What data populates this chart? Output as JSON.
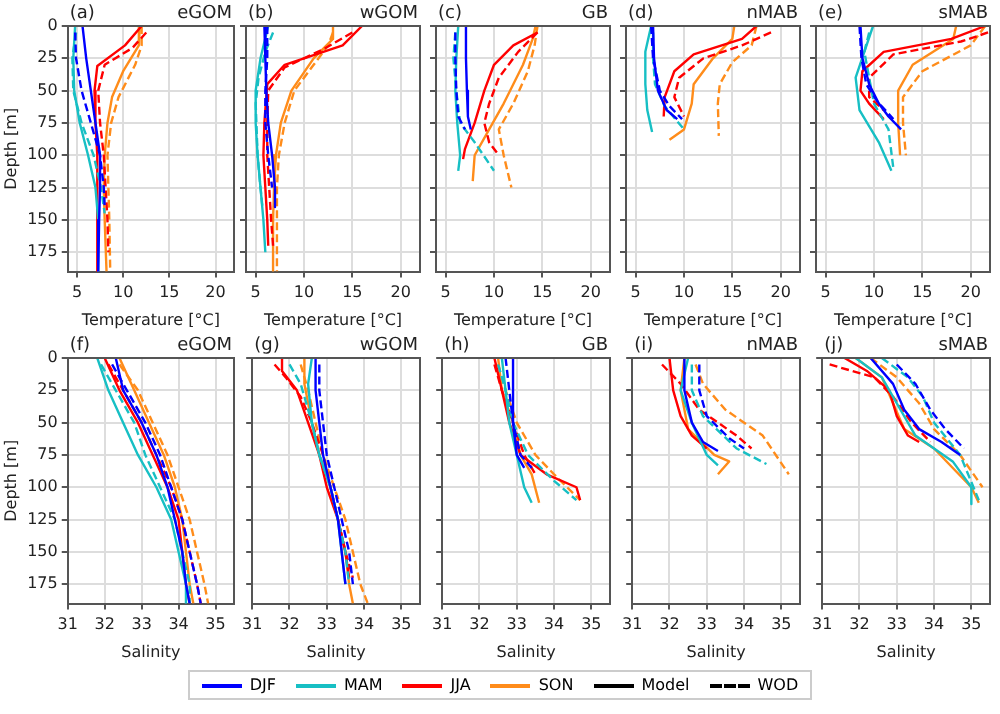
{
  "chart_data": [
    {
      "type": "line",
      "title": "(a)",
      "subtitle": "eGOM",
      "xlabel": "Temperature [°C]",
      "ylabel": "Depth [m]",
      "xlim": [
        4,
        22
      ],
      "xticks": [
        5,
        10,
        15,
        20
      ],
      "ylim": [
        190,
        0
      ],
      "yticks": [
        0,
        25,
        50,
        75,
        100,
        125,
        150,
        175
      ],
      "grid": true,
      "legend": "bottom",
      "series": [
        {
          "name": "DJF",
          "color": "#0000ff",
          "line_style": "solid",
          "x": [
            5.6,
            6,
            6.5,
            7,
            7.5,
            7.5,
            7.4,
            7.3
          ],
          "values": [
            0,
            25,
            50,
            75,
            100,
            125,
            150,
            190
          ]
        },
        {
          "color": "#0000ff",
          "line_style": "dashed",
          "x": [
            4.8,
            4.9,
            5.5,
            6.5,
            7.5,
            7.9,
            8
          ],
          "values": [
            5,
            25,
            50,
            75,
            100,
            125,
            140
          ]
        },
        {
          "name": "MAM",
          "color": "#17bfc4",
          "line_style": "solid",
          "x": [
            4.8,
            4.6,
            4.7,
            5.3,
            6.2,
            7,
            7.3,
            7.3
          ],
          "values": [
            0,
            25,
            50,
            75,
            100,
            125,
            150,
            190
          ]
        },
        {
          "color": "#17bfc4",
          "line_style": "dashed",
          "x": [
            4.9,
            4.5,
            4.6,
            5.5,
            6.8,
            7.6,
            8
          ],
          "values": [
            5,
            25,
            50,
            75,
            100,
            125,
            145
          ]
        },
        {
          "name": "JJA",
          "color": "#ff0000",
          "line_style": "solid",
          "x": [
            12,
            10.2,
            7.2,
            6.9,
            7,
            7.2,
            7.2,
            7.2,
            7.2
          ],
          "values": [
            0,
            15,
            31,
            50,
            75,
            100,
            125,
            150,
            190
          ]
        },
        {
          "color": "#ff0000",
          "line_style": "dashed",
          "x": [
            12.5,
            11,
            8,
            7.3,
            7.5,
            7.9,
            8.1,
            8.3,
            8.4
          ],
          "values": [
            5,
            17,
            30,
            50,
            75,
            100,
            125,
            150,
            175
          ]
        },
        {
          "name": "SON",
          "color": "#ff8c1a",
          "line_style": "solid",
          "x": [
            11.8,
            11.7,
            10,
            8.8,
            8.3,
            8,
            7.9,
            8,
            8.2
          ],
          "values": [
            0,
            15,
            35,
            55,
            75,
            100,
            125,
            150,
            190
          ]
        },
        {
          "color": "#ff8c1a",
          "line_style": "dashed",
          "x": [
            12,
            12,
            11.3,
            9.5,
            8.7,
            8.3,
            8.4,
            8.5,
            8.6
          ],
          "values": [
            0,
            15,
            30,
            55,
            75,
            100,
            125,
            150,
            190
          ]
        },
        {
          "name": "Model",
          "color": "#000000",
          "line_style": "solid"
        },
        {
          "name": "WOD",
          "color": "#000000",
          "line_style": "dashed"
        }
      ]
    },
    {
      "type": "line",
      "title": "(b)",
      "subtitle": "wGOM",
      "xlabel": "Temperature [°C]",
      "xlim": [
        4,
        22
      ],
      "xticks": [
        5,
        10,
        15,
        20
      ],
      "ylim": [
        190,
        0
      ],
      "yticks": [
        0,
        25,
        50,
        75,
        100,
        125,
        150,
        175
      ],
      "grid": true,
      "tick_labels": "x",
      "series": [
        {
          "color": "#0000ff",
          "line_style": "solid",
          "x": [
            5.9,
            6,
            6.1,
            6.3,
            6.7,
            7,
            7
          ],
          "values": [
            0,
            25,
            50,
            75,
            100,
            125,
            140
          ]
        },
        {
          "color": "#0000ff",
          "line_style": "dashed",
          "x": [
            6.2,
            6.2,
            6,
            6,
            6.3,
            6.7
          ],
          "values": [
            0,
            25,
            50,
            75,
            100,
            125
          ]
        },
        {
          "color": "#17bfc4",
          "line_style": "solid",
          "x": [
            6.3,
            5.5,
            5,
            5,
            5.2,
            5.5,
            5.8,
            6
          ],
          "values": [
            0,
            25,
            50,
            75,
            100,
            125,
            150,
            175
          ]
        },
        {
          "color": "#17bfc4",
          "line_style": "dashed",
          "x": [
            6.8,
            6,
            5.3,
            5,
            5.2,
            5.5,
            5.7
          ],
          "values": [
            5,
            20,
            40,
            60,
            100,
            125,
            140
          ]
        },
        {
          "color": "#ff0000",
          "line_style": "solid",
          "x": [
            16,
            14,
            8,
            6.2,
            5.9,
            5.8,
            6,
            6.2,
            6.3
          ],
          "values": [
            0,
            15,
            30,
            45,
            75,
            100,
            125,
            150,
            170
          ]
        },
        {
          "color": "#ff0000",
          "line_style": "dashed",
          "x": [
            15,
            12,
            8,
            6.3,
            6.2,
            6.2,
            6.4,
            6.6,
            6.8
          ],
          "values": [
            5,
            18,
            32,
            50,
            75,
            100,
            125,
            150,
            170
          ]
        },
        {
          "color": "#ff8c1a",
          "line_style": "solid",
          "x": [
            13,
            13,
            11,
            8.7,
            7.6,
            7.1,
            6.9,
            6.8,
            6.8
          ],
          "values": [
            0,
            10,
            25,
            50,
            75,
            100,
            125,
            150,
            190
          ]
        },
        {
          "color": "#ff8c1a",
          "line_style": "dashed",
          "x": [
            13,
            12.5,
            11,
            9,
            8,
            7.4,
            7.2,
            7.2,
            7.2
          ],
          "values": [
            5,
            15,
            30,
            50,
            75,
            100,
            125,
            150,
            190
          ]
        }
      ]
    },
    {
      "type": "line",
      "title": "(c)",
      "subtitle": "GB",
      "xlabel": "Temperature [°C]",
      "xlim": [
        4,
        22
      ],
      "xticks": [
        5,
        10,
        15,
        20
      ],
      "ylim": [
        190,
        0
      ],
      "yticks": [
        0,
        25,
        50,
        75,
        100,
        125,
        150,
        175
      ],
      "grid": true,
      "tick_labels": "x",
      "series": [
        {
          "color": "#0000ff",
          "line_style": "solid",
          "x": [
            7.1,
            7.1,
            7.2,
            7.3,
            7.6
          ],
          "values": [
            0,
            25,
            50,
            70,
            80
          ]
        },
        {
          "color": "#0000ff",
          "line_style": "dashed",
          "x": [
            6,
            6,
            6.1,
            6.3,
            7
          ],
          "values": [
            5,
            25,
            50,
            70,
            80
          ]
        },
        {
          "color": "#17bfc4",
          "line_style": "solid",
          "x": [
            6.3,
            6.1,
            6,
            6.2,
            6.5,
            6.3
          ],
          "values": [
            0,
            25,
            50,
            75,
            100,
            112
          ]
        },
        {
          "color": "#17bfc4",
          "line_style": "dashed",
          "x": [
            6,
            5.8,
            6.1,
            6.5,
            8,
            10
          ],
          "values": [
            5,
            25,
            50,
            75,
            90,
            112
          ]
        },
        {
          "color": "#ff0000",
          "line_style": "solid",
          "x": [
            14.5,
            12,
            10,
            9,
            8,
            7,
            6.8
          ],
          "values": [
            5,
            15,
            30,
            50,
            75,
            95,
            103
          ]
        },
        {
          "color": "#ff0000",
          "line_style": "dashed",
          "x": [
            14.5,
            12.5,
            10.5,
            9.5,
            9,
            9.5,
            10.5
          ],
          "values": [
            5,
            20,
            40,
            60,
            75,
            90,
            100
          ]
        },
        {
          "color": "#ff8c1a",
          "line_style": "solid",
          "x": [
            14.3,
            14,
            13,
            11,
            9.5,
            8,
            7.8
          ],
          "values": [
            0,
            10,
            30,
            60,
            80,
            100,
            120
          ]
        },
        {
          "color": "#ff8c1a",
          "line_style": "dashed",
          "x": [
            14.5,
            14.2,
            13.5,
            12,
            10.5,
            11,
            11.8
          ],
          "values": [
            0,
            15,
            35,
            60,
            80,
            100,
            125
          ]
        }
      ]
    },
    {
      "type": "line",
      "title": "(d)",
      "subtitle": "nMAB",
      "xlabel": "Temperature [°C]",
      "xlim": [
        4,
        22
      ],
      "xticks": [
        5,
        10,
        15,
        20
      ],
      "ylim": [
        190,
        0
      ],
      "yticks": [
        0,
        25,
        50,
        75,
        100,
        125,
        150,
        175
      ],
      "grid": true,
      "tick_labels": "x",
      "series": [
        {
          "color": "#0000ff",
          "line_style": "solid",
          "x": [
            6.8,
            6.9,
            7.3,
            8.2,
            9.3
          ],
          "values": [
            0,
            25,
            50,
            65,
            72
          ]
        },
        {
          "color": "#0000ff",
          "line_style": "dashed",
          "x": [
            6.6,
            6.8,
            7.5,
            8.5,
            9.8
          ],
          "values": [
            0,
            25,
            50,
            62,
            72
          ]
        },
        {
          "color": "#17bfc4",
          "line_style": "solid",
          "x": [
            6.6,
            6,
            6,
            6.2,
            6.7
          ],
          "values": [
            0,
            20,
            45,
            65,
            82
          ]
        },
        {
          "color": "#17bfc4",
          "line_style": "dashed",
          "x": [
            6.8,
            6.8,
            7,
            8,
            10
          ],
          "values": [
            5,
            25,
            45,
            62,
            80
          ]
        },
        {
          "color": "#ff0000",
          "line_style": "solid",
          "x": [
            17.5,
            16,
            11,
            9,
            8,
            7.9
          ],
          "values": [
            0,
            10,
            22,
            35,
            55,
            70
          ]
        },
        {
          "color": "#ff0000",
          "line_style": "dashed",
          "x": [
            19,
            16,
            12,
            9.5,
            9,
            10
          ],
          "values": [
            5,
            15,
            25,
            40,
            55,
            70
          ]
        },
        {
          "color": "#ff8c1a",
          "line_style": "solid",
          "x": [
            15.2,
            15,
            13,
            11,
            10.8,
            10,
            8.5
          ],
          "values": [
            0,
            10,
            25,
            45,
            60,
            80,
            88
          ]
        },
        {
          "color": "#ff8c1a",
          "line_style": "dashed",
          "x": [
            17.5,
            17,
            15,
            13.7,
            13.5,
            13.6
          ],
          "values": [
            0,
            15,
            28,
            45,
            60,
            85
          ]
        }
      ]
    },
    {
      "type": "line",
      "title": "(e)",
      "subtitle": "sMAB",
      "xlabel": "Temperature [°C]",
      "xlim": [
        4,
        22
      ],
      "xticks": [
        5,
        10,
        15,
        20
      ],
      "ylim": [
        190,
        0
      ],
      "yticks": [
        0,
        25,
        50,
        75,
        100,
        125,
        150,
        175
      ],
      "grid": true,
      "tick_labels": "x",
      "series": [
        {
          "color": "#0000ff",
          "line_style": "solid",
          "x": [
            8.6,
            8.8,
            9.5,
            10.5,
            11.5,
            12.8
          ],
          "values": [
            0,
            25,
            45,
            60,
            70,
            80
          ]
        },
        {
          "color": "#0000ff",
          "line_style": "dashed",
          "x": [
            8.5,
            8.7,
            9.2,
            10.3,
            12
          ],
          "values": [
            0,
            25,
            45,
            58,
            72
          ]
        },
        {
          "color": "#17bfc4",
          "line_style": "solid",
          "x": [
            9.9,
            9,
            8.1,
            8.5,
            10.5,
            11.8
          ],
          "values": [
            0,
            20,
            40,
            65,
            90,
            112
          ]
        },
        {
          "color": "#17bfc4",
          "line_style": "dashed",
          "x": [
            9.5,
            9,
            9.5,
            10,
            11.5,
            12
          ],
          "values": [
            5,
            20,
            40,
            60,
            80,
            110
          ]
        },
        {
          "color": "#ff0000",
          "line_style": "solid",
          "x": [
            21.5,
            18,
            11,
            8.8,
            8.6,
            9.5,
            11
          ],
          "values": [
            0,
            10,
            20,
            35,
            50,
            60,
            72
          ]
        },
        {
          "color": "#ff0000",
          "line_style": "dashed",
          "x": [
            21.8,
            19,
            12,
            9.5,
            9.5,
            11
          ],
          "values": [
            5,
            12,
            22,
            40,
            55,
            65
          ]
        },
        {
          "color": "#ff8c1a",
          "line_style": "solid",
          "x": [
            18.5,
            18.2,
            14,
            12.5,
            12.5,
            12.7
          ],
          "values": [
            0,
            10,
            30,
            50,
            75,
            100
          ]
        },
        {
          "color": "#ff8c1a",
          "line_style": "dashed",
          "x": [
            21.5,
            20,
            15,
            13,
            13,
            13.3
          ],
          "values": [
            0,
            15,
            35,
            55,
            75,
            100
          ]
        }
      ]
    },
    {
      "type": "line",
      "title": "(f)",
      "subtitle": "eGOM",
      "xlabel": "Salinity",
      "ylabel": "Depth [m]",
      "xlim": [
        31,
        35.5
      ],
      "xticks": [
        31,
        32,
        33,
        34,
        35
      ],
      "ylim": [
        190,
        0
      ],
      "yticks": [
        0,
        25,
        50,
        75,
        100,
        125,
        150,
        175
      ],
      "grid": true,
      "series": [
        {
          "color": "#0000ff",
          "line_style": "solid",
          "x": [
            32.3,
            32.5,
            33,
            33.4,
            33.7,
            33.9,
            34.1,
            34.2,
            34.3
          ],
          "values": [
            0,
            25,
            50,
            75,
            100,
            125,
            150,
            175,
            190
          ]
        },
        {
          "color": "#0000ff",
          "line_style": "dashed",
          "x": [
            32.2,
            32.6,
            33.1,
            33.5,
            33.8,
            34.1,
            34.3,
            34.5,
            34.6
          ],
          "values": [
            5,
            25,
            50,
            75,
            100,
            125,
            150,
            175,
            190
          ]
        },
        {
          "color": "#17bfc4",
          "line_style": "solid",
          "x": [
            31.8,
            32.1,
            32.5,
            32.9,
            33.4,
            33.8,
            34,
            34.2,
            34.2
          ],
          "values": [
            0,
            25,
            50,
            75,
            100,
            125,
            150,
            175,
            190
          ]
        },
        {
          "color": "#17bfc4",
          "line_style": "dashed",
          "x": [
            31.9,
            32.3,
            32.8,
            33.1,
            33.5,
            33.9,
            34.1,
            34.3,
            34.3
          ],
          "values": [
            5,
            25,
            50,
            75,
            100,
            125,
            150,
            175,
            190
          ]
        },
        {
          "color": "#ff0000",
          "line_style": "solid",
          "x": [
            32,
            32.4,
            32.9,
            33.3,
            33.7,
            34,
            34.1,
            34.2,
            34.3
          ],
          "values": [
            0,
            25,
            50,
            75,
            100,
            125,
            150,
            175,
            190
          ]
        },
        {
          "color": "#ff0000",
          "line_style": "dashed",
          "x": [
            32.1,
            32.5,
            33,
            33.4,
            33.8,
            34.1,
            34.3,
            34.5,
            34.6
          ],
          "values": [
            5,
            25,
            50,
            75,
            100,
            125,
            150,
            175,
            190
          ]
        },
        {
          "color": "#ff8c1a",
          "line_style": "solid",
          "x": [
            32.4,
            32.8,
            33.2,
            33.6,
            33.9,
            34.1,
            34.2,
            34.3,
            34.4
          ],
          "values": [
            0,
            25,
            50,
            75,
            100,
            125,
            150,
            175,
            190
          ]
        },
        {
          "color": "#ff8c1a",
          "line_style": "dashed",
          "x": [
            32.4,
            32.9,
            33.3,
            33.7,
            34,
            34.3,
            34.5,
            34.7,
            34.8
          ],
          "values": [
            5,
            25,
            50,
            75,
            100,
            125,
            150,
            175,
            190
          ]
        }
      ]
    },
    {
      "type": "line",
      "title": "(g)",
      "subtitle": "wGOM",
      "xlabel": "Salinity",
      "xlim": [
        31,
        35.5
      ],
      "xticks": [
        31,
        32,
        33,
        34,
        35
      ],
      "ylim": [
        190,
        0
      ],
      "yticks": [
        0,
        25,
        50,
        75,
        100,
        125,
        150,
        175
      ],
      "grid": true,
      "tick_labels": "x",
      "series": [
        {
          "color": "#0000ff",
          "line_style": "solid",
          "x": [
            32.7,
            32.7,
            32.8,
            32.9,
            33.1,
            33.3,
            33.4,
            33.5
          ],
          "values": [
            0,
            25,
            50,
            75,
            100,
            125,
            150,
            175
          ]
        },
        {
          "color": "#0000ff",
          "line_style": "dashed",
          "x": [
            32.8,
            32.8,
            32.9,
            33,
            33.2,
            33.4,
            33.6,
            33.7
          ],
          "values": [
            5,
            25,
            50,
            75,
            100,
            125,
            150,
            175
          ]
        },
        {
          "color": "#17bfc4",
          "line_style": "solid",
          "x": [
            32.6,
            32.5,
            32.6,
            32.8,
            33.1,
            33.3,
            33.4,
            33.5
          ],
          "values": [
            0,
            20,
            50,
            75,
            100,
            125,
            150,
            175
          ]
        },
        {
          "color": "#17bfc4",
          "line_style": "dashed",
          "x": [
            32,
            32.3,
            32.6,
            32.8,
            33.1,
            33.3,
            33.5,
            33.6
          ],
          "values": [
            5,
            20,
            50,
            75,
            100,
            125,
            150,
            175
          ]
        },
        {
          "color": "#ff0000",
          "line_style": "solid",
          "x": [
            31.8,
            31.8,
            32.2,
            32.5,
            32.8,
            33,
            33.3,
            33.5,
            33.6
          ],
          "values": [
            0,
            10,
            25,
            50,
            75,
            100,
            125,
            150,
            170
          ]
        },
        {
          "color": "#ff0000",
          "line_style": "dashed",
          "x": [
            31.6,
            31.9,
            32.3,
            32.6,
            32.9,
            33.1,
            33.3,
            33.5,
            33.7
          ],
          "values": [
            5,
            15,
            30,
            50,
            75,
            100,
            125,
            150,
            170
          ]
        },
        {
          "color": "#ff8c1a",
          "line_style": "solid",
          "x": [
            32.4,
            32.4,
            32.6,
            32.8,
            33.1,
            33.3,
            33.5,
            33.6,
            33.7
          ],
          "values": [
            0,
            20,
            50,
            75,
            100,
            125,
            150,
            175,
            190
          ]
        },
        {
          "color": "#ff8c1a",
          "line_style": "dashed",
          "x": [
            32.3,
            32.5,
            32.7,
            32.9,
            33.2,
            33.5,
            33.7,
            33.9,
            34.1
          ],
          "values": [
            5,
            25,
            50,
            75,
            100,
            125,
            150,
            175,
            190
          ]
        }
      ]
    },
    {
      "type": "line",
      "title": "(h)",
      "subtitle": "GB",
      "xlabel": "Salinity",
      "xlim": [
        31,
        35.5
      ],
      "xticks": [
        31,
        32,
        33,
        34,
        35
      ],
      "ylim": [
        190,
        0
      ],
      "yticks": [
        0,
        25,
        50,
        75,
        100,
        125,
        150,
        175
      ],
      "grid": true,
      "tick_labels": "x",
      "series": [
        {
          "color": "#0000ff",
          "line_style": "solid",
          "x": [
            32.9,
            32.9,
            32.9,
            33,
            33.2
          ],
          "values": [
            0,
            25,
            50,
            75,
            85
          ]
        },
        {
          "color": "#0000ff",
          "line_style": "dashed",
          "x": [
            32.7,
            32.8,
            32.9,
            33.1,
            33.4
          ],
          "values": [
            0,
            25,
            50,
            75,
            85
          ]
        },
        {
          "color": "#17bfc4",
          "line_style": "solid",
          "x": [
            32.6,
            32.7,
            32.8,
            33,
            33.2,
            33.4
          ],
          "values": [
            0,
            25,
            50,
            75,
            100,
            112
          ]
        },
        {
          "color": "#17bfc4",
          "line_style": "dashed",
          "x": [
            32.5,
            32.7,
            32.9,
            33.3,
            34,
            34.6
          ],
          "values": [
            5,
            25,
            50,
            75,
            95,
            110
          ]
        },
        {
          "color": "#ff0000",
          "line_style": "solid",
          "x": [
            32.4,
            32.6,
            32.8,
            33.1,
            33.8,
            34.6,
            34.7
          ],
          "values": [
            0,
            25,
            50,
            75,
            90,
            100,
            110
          ]
        },
        {
          "color": "#ff0000",
          "line_style": "dashed",
          "x": [
            32.4,
            32.6,
            32.9,
            33.2,
            33.5
          ],
          "values": [
            5,
            25,
            50,
            75,
            90
          ]
        },
        {
          "color": "#ff8c1a",
          "line_style": "solid",
          "x": [
            32.5,
            32.6,
            32.9,
            33.1,
            33.4,
            33.6
          ],
          "values": [
            0,
            25,
            50,
            75,
            90,
            112
          ]
        },
        {
          "color": "#ff8c1a",
          "line_style": "dashed",
          "x": [
            32.5,
            32.7,
            33,
            33.5,
            34,
            34.7
          ],
          "values": [
            5,
            25,
            50,
            75,
            90,
            110
          ]
        }
      ]
    },
    {
      "type": "line",
      "title": "(i)",
      "subtitle": "nMAB",
      "xlabel": "Salinity",
      "xlim": [
        31,
        35.5
      ],
      "xticks": [
        31,
        32,
        33,
        34,
        35
      ],
      "ylim": [
        190,
        0
      ],
      "yticks": [
        0,
        25,
        50,
        75,
        100,
        125,
        150,
        175
      ],
      "grid": true,
      "tick_labels": "x",
      "series": [
        {
          "color": "#0000ff",
          "line_style": "solid",
          "x": [
            32.4,
            32.4,
            32.6,
            32.9,
            33.3
          ],
          "values": [
            0,
            25,
            50,
            65,
            72
          ]
        },
        {
          "color": "#0000ff",
          "line_style": "dashed",
          "x": [
            32.8,
            32.8,
            33,
            33.6,
            34
          ],
          "values": [
            5,
            25,
            45,
            62,
            70
          ]
        },
        {
          "color": "#17bfc4",
          "line_style": "solid",
          "x": [
            32.5,
            32.3,
            32.6,
            33,
            33.3
          ],
          "values": [
            0,
            25,
            50,
            75,
            83
          ]
        },
        {
          "color": "#17bfc4",
          "line_style": "dashed",
          "x": [
            32.6,
            32.6,
            32.9,
            33.8,
            34.6
          ],
          "values": [
            5,
            25,
            45,
            70,
            82
          ]
        },
        {
          "color": "#ff0000",
          "line_style": "solid",
          "x": [
            32,
            32.1,
            32.3,
            32.6,
            33
          ],
          "values": [
            0,
            25,
            45,
            60,
            70
          ]
        },
        {
          "color": "#ff0000",
          "line_style": "dashed",
          "x": [
            31.8,
            32.3,
            32.8,
            33.8,
            34.2
          ],
          "values": [
            5,
            20,
            40,
            60,
            70
          ]
        },
        {
          "color": "#ff8c1a",
          "line_style": "solid",
          "x": [
            32.4,
            32.3,
            32.5,
            33.2,
            33.6,
            33.3
          ],
          "values": [
            0,
            25,
            55,
            75,
            80,
            90
          ]
        },
        {
          "color": "#ff8c1a",
          "line_style": "dashed",
          "x": [
            32.7,
            32.9,
            33.5,
            34.5,
            35.2
          ],
          "values": [
            5,
            20,
            40,
            60,
            90
          ]
        }
      ]
    },
    {
      "type": "line",
      "title": "(j)",
      "subtitle": "sMAB",
      "xlabel": "Salinity",
      "xlim": [
        31,
        35.5
      ],
      "xticks": [
        31,
        32,
        33,
        34,
        35
      ],
      "ylim": [
        190,
        0
      ],
      "yticks": [
        0,
        25,
        50,
        75,
        100,
        125,
        150,
        175
      ],
      "grid": true,
      "tick_labels": "x",
      "series": [
        {
          "color": "#0000ff",
          "line_style": "solid",
          "x": [
            32.3,
            32.9,
            33.2,
            33.6,
            34.2,
            34.7
          ],
          "values": [
            0,
            20,
            40,
            55,
            65,
            75
          ]
        },
        {
          "color": "#0000ff",
          "line_style": "dashed",
          "x": [
            33,
            33.5,
            33.9,
            34.3,
            34.8
          ],
          "values": [
            5,
            20,
            40,
            55,
            70
          ]
        },
        {
          "color": "#17bfc4",
          "line_style": "solid",
          "x": [
            31.9,
            32.6,
            33,
            33.5,
            34.5,
            35,
            35
          ],
          "values": [
            0,
            15,
            35,
            60,
            80,
            100,
            113
          ]
        },
        {
          "color": "#17bfc4",
          "line_style": "dashed",
          "x": [
            32.6,
            33.3,
            33.7,
            34,
            34.7,
            35.2
          ],
          "values": [
            0,
            15,
            30,
            50,
            75,
            110
          ]
        },
        {
          "color": "#ff0000",
          "line_style": "solid",
          "x": [
            31.6,
            32.2,
            32.8,
            33,
            33.3,
            33.6
          ],
          "values": [
            0,
            10,
            25,
            45,
            60,
            65
          ]
        },
        {
          "color": "#ff0000",
          "line_style": "dashed",
          "x": [
            31.2,
            32.4,
            32.9,
            33.4,
            33.9
          ],
          "values": [
            5,
            15,
            30,
            50,
            65
          ]
        },
        {
          "color": "#ff8c1a",
          "line_style": "solid",
          "x": [
            31.9,
            32.6,
            32.9,
            33.2,
            34,
            35,
            35.2
          ],
          "values": [
            0,
            15,
            35,
            55,
            70,
            100,
            112
          ]
        },
        {
          "color": "#ff8c1a",
          "line_style": "dashed",
          "x": [
            32.3,
            33,
            33.6,
            34,
            34.7,
            35.3
          ],
          "values": [
            0,
            15,
            35,
            55,
            75,
            100
          ]
        }
      ]
    }
  ]
}
